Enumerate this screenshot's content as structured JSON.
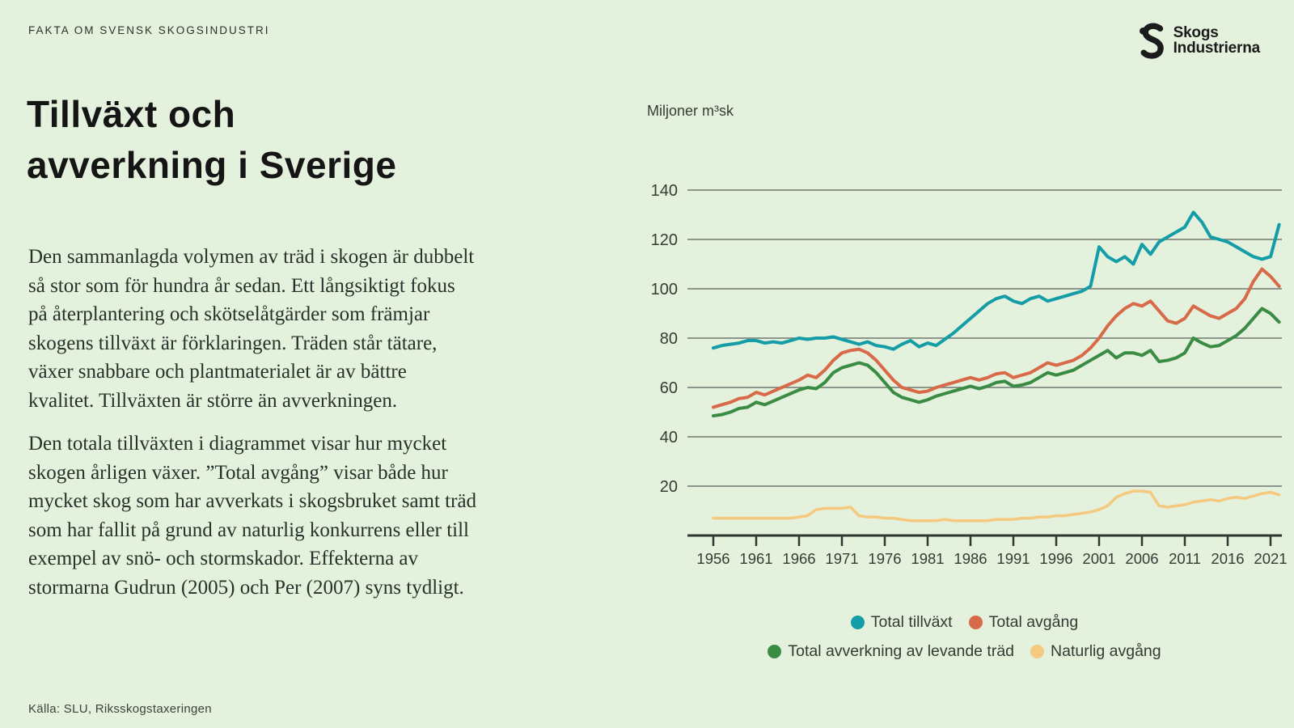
{
  "header": {
    "eyebrow": "FAKTA OM SVENSK SKOGSINDUSTRI"
  },
  "logo": {
    "line1": "Skogs",
    "line2": "Industrierna"
  },
  "title": {
    "text": "Tillväxt och\navverkning i Sverige"
  },
  "body": {
    "paragraph1": "Den sammanlagda volymen av träd i skogen är dubbelt\nså stor som för hundra år sedan. Ett långsiktigt fokus\npå återplantering och skötselåtgärder som främjar\nskogens tillväxt är förklaringen. Träden står tätare,\nväxer snabbare och plantmaterialet är av bättre\nkvalitet. Tillväxten är större än avverkningen.",
    "paragraph2": "Den totala tillväxten i diagrammet visar hur mycket\nskogen årligen växer. ”Total avgång” visar både hur\nmycket skog som har avverkats i skogsbruket samt träd\nsom har fallit på grund av naturlig konkurrens eller till\nexempel av snö- och stormskador. Effekterna av\nstormarna Gudrun (2005) och Per (2007) syns tydligt."
  },
  "source": {
    "label": "Källa: SLU, Riksskogstaxeringen"
  },
  "colors": {
    "background": "#e4f1dc",
    "grid": "#6e786e",
    "axis": "#2e3830",
    "teal": "#149da6",
    "orange": "#d96a49",
    "green": "#3a8c45",
    "yellow": "#f5c97e"
  },
  "chart_data": {
    "type": "line",
    "title": "",
    "unit_label": "Miljoner m³sk",
    "xlabel": "",
    "ylabel": "Miljoner m³sk",
    "grid": "horizontal",
    "legend_position": "bottom",
    "ylim": [
      0,
      145
    ],
    "y_ticks": [
      20,
      40,
      60,
      80,
      100,
      120,
      140
    ],
    "x_tick_labels": [
      "1956",
      "1961",
      "1966",
      "1971",
      "1976",
      "1981",
      "1986",
      "1991",
      "1996",
      "2001",
      "2006",
      "2011",
      "2016",
      "2021"
    ],
    "years": [
      1956,
      1957,
      1958,
      1959,
      1960,
      1961,
      1962,
      1963,
      1964,
      1965,
      1966,
      1967,
      1968,
      1969,
      1970,
      1971,
      1972,
      1973,
      1974,
      1975,
      1976,
      1977,
      1978,
      1979,
      1980,
      1981,
      1982,
      1983,
      1984,
      1985,
      1986,
      1987,
      1988,
      1989,
      1990,
      1991,
      1992,
      1993,
      1994,
      1995,
      1996,
      1997,
      1998,
      1999,
      2000,
      2001,
      2002,
      2003,
      2004,
      2005,
      2006,
      2007,
      2008,
      2009,
      2010,
      2011,
      2012,
      2013,
      2014,
      2015,
      2016,
      2017,
      2018,
      2019,
      2020,
      2021,
      2022
    ],
    "series": [
      {
        "name": "Total tillväxt",
        "color": "#149da6",
        "stroke_width": 4,
        "values": [
          76,
          77,
          77.5,
          78,
          79,
          79,
          78,
          78.5,
          78,
          79,
          80,
          79.5,
          80,
          80,
          80.5,
          79.5,
          78.5,
          77.5,
          78.5,
          77,
          76.5,
          75.5,
          77.5,
          79,
          76.5,
          78,
          77,
          79.5,
          82,
          85,
          88,
          91,
          94,
          96,
          97,
          95,
          94,
          96,
          97,
          95,
          96,
          97,
          98,
          99,
          101,
          117,
          113,
          111,
          113,
          110,
          118,
          114,
          119,
          121,
          123,
          125,
          131,
          127,
          121,
          120,
          119,
          117,
          115,
          113,
          112,
          113,
          126
        ]
      },
      {
        "name": "Total avgång",
        "color": "#d96a49",
        "stroke_width": 4,
        "values": [
          52,
          53,
          54,
          55.5,
          56,
          58,
          57,
          58.5,
          60,
          61.5,
          63,
          65,
          64,
          67,
          71,
          74,
          75,
          75.5,
          74,
          71,
          67,
          63,
          60,
          59,
          58,
          58.5,
          60,
          61,
          62,
          63,
          64,
          63,
          64,
          65.5,
          66,
          64,
          65,
          66,
          68,
          70,
          69,
          70,
          71,
          73,
          76,
          80,
          85,
          89,
          92,
          94,
          93,
          95,
          91,
          87,
          86,
          88,
          93,
          91,
          89,
          88,
          90,
          92,
          96,
          103,
          108,
          105,
          101
        ]
      },
      {
        "name": "Total avverkning av levande träd",
        "color": "#3a8c45",
        "stroke_width": 4,
        "values": [
          48.5,
          49,
          50,
          51.5,
          52,
          54,
          53,
          54.5,
          56,
          57.5,
          59,
          60,
          59.5,
          62,
          66,
          68,
          69,
          70,
          69,
          66,
          62,
          58,
          56,
          55,
          54,
          55,
          56.5,
          57.5,
          58.5,
          59.5,
          60.5,
          59.5,
          60.5,
          62,
          62.5,
          60.5,
          61,
          62,
          64,
          66,
          65,
          66,
          67,
          69,
          71,
          73,
          75,
          72,
          74,
          74,
          73,
          75,
          70.5,
          71,
          72,
          74,
          80,
          78,
          76.5,
          77,
          79,
          81,
          84,
          88,
          92,
          90,
          86.5
        ]
      },
      {
        "name": "Naturlig avgång",
        "color": "#f5c97e",
        "stroke_width": 3.5,
        "values": [
          7,
          7,
          7,
          7,
          7,
          7,
          7,
          7,
          7,
          7,
          7.5,
          8,
          10.5,
          11,
          11,
          11,
          11.5,
          8,
          7.5,
          7.5,
          7,
          7,
          6.5,
          6,
          6,
          6,
          6,
          6.5,
          6,
          6,
          6,
          6,
          6,
          6.5,
          6.5,
          6.5,
          7,
          7,
          7.5,
          7.5,
          8,
          8,
          8.5,
          9,
          9.5,
          10.5,
          12,
          15.5,
          17,
          18,
          18,
          17.5,
          12,
          11.5,
          12,
          12.5,
          13.5,
          14,
          14.5,
          14,
          15,
          15.5,
          15,
          16,
          17,
          17.5,
          16.5
        ]
      }
    ],
    "legend_rows": [
      [
        0,
        1
      ],
      [
        2,
        3
      ]
    ]
  }
}
